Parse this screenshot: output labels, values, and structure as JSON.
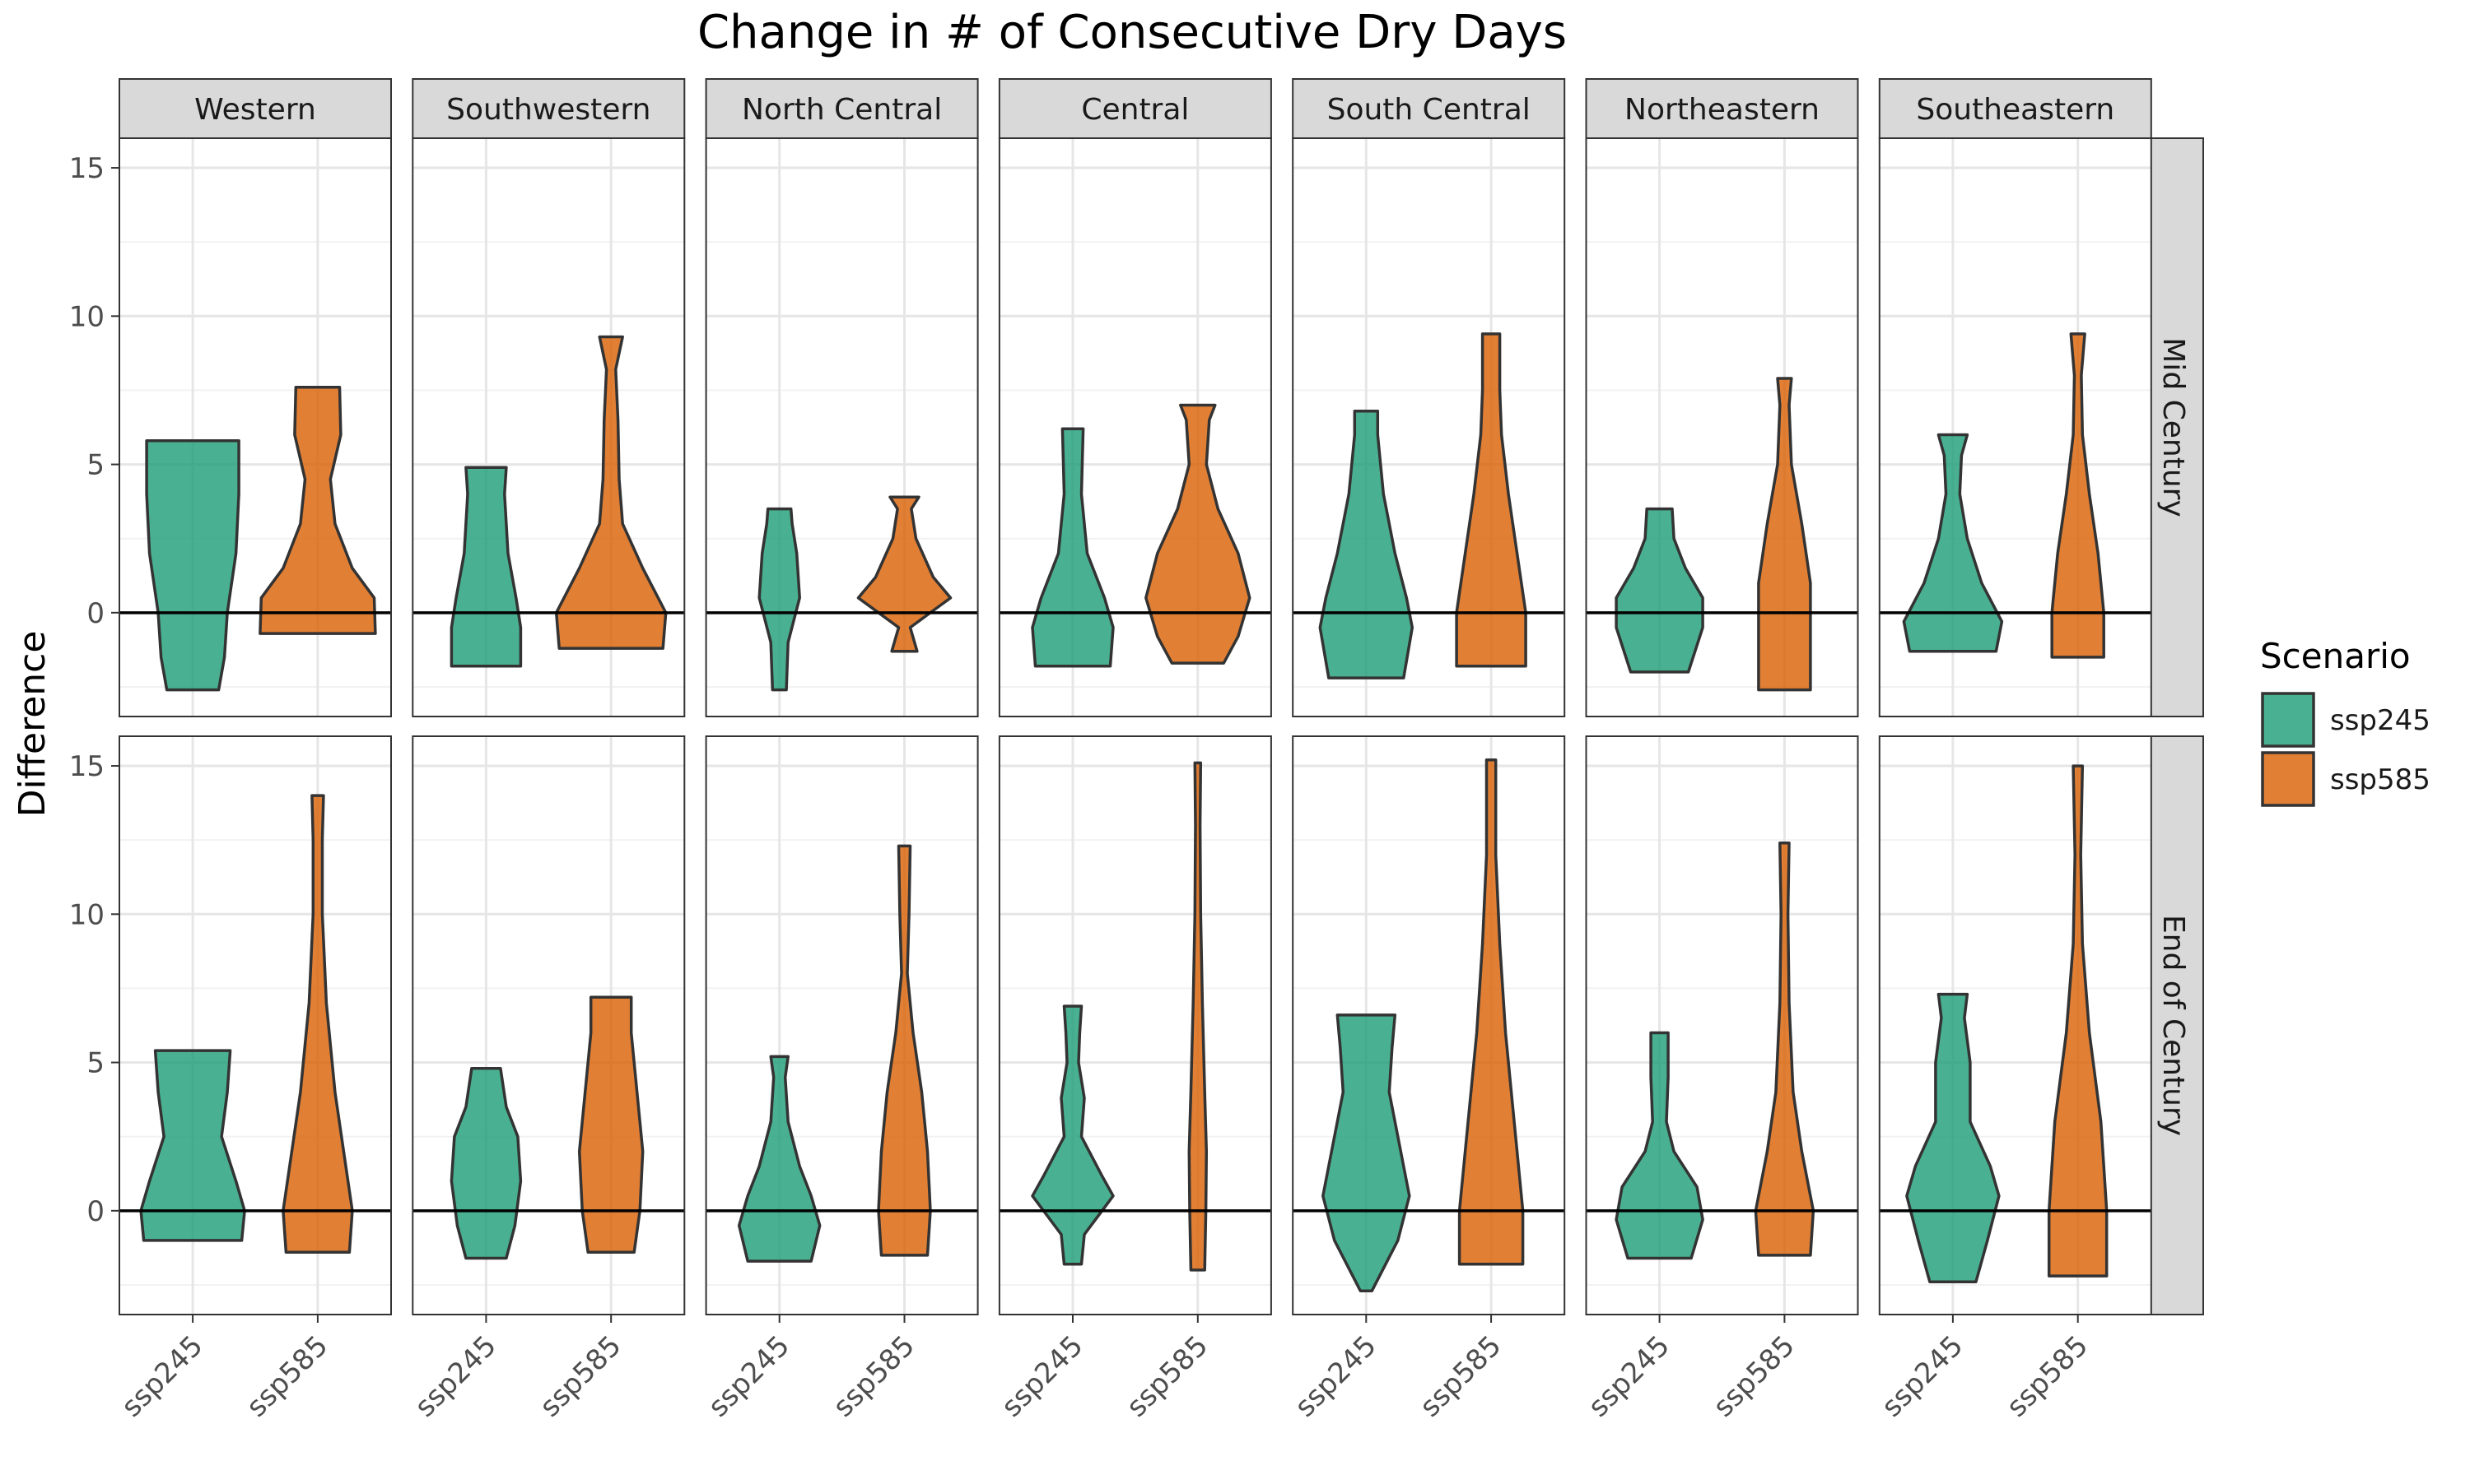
{
  "chart_data": {
    "type": "violin",
    "title": "Change in # of Consecutive Dry Days",
    "xlabel": "",
    "ylabel": "Difference",
    "facet_columns": [
      "Western",
      "Southwestern",
      "North Central",
      "Central",
      "South Central",
      "Northeastern",
      "Southeastern"
    ],
    "facet_rows": [
      "Mid Century",
      "End of Century"
    ],
    "categories": [
      "ssp245",
      "ssp585"
    ],
    "ylim": [
      -3.5,
      16
    ],
    "y_ticks": [
      0,
      5,
      10,
      15
    ],
    "y_tick_labels": [
      "0",
      "5",
      "10",
      "15"
    ],
    "reference_line_y": 0,
    "legend": {
      "title": "Scenario",
      "position": "right",
      "entries": [
        {
          "name": "ssp245",
          "color": "#1b9e77"
        },
        {
          "name": "ssp585",
          "color": "#d95f02"
        }
      ]
    },
    "series": [
      {
        "name": "ssp245",
        "color": "#1b9e77"
      },
      {
        "name": "ssp585",
        "color": "#d95f02"
      }
    ],
    "violins": [
      {
        "row": "Mid Century",
        "col": "Western",
        "scenario": "ssp245",
        "min": -2.6,
        "max": 5.8,
        "shape": [
          [
            -2.6,
            0.45
          ],
          [
            -1.5,
            0.55
          ],
          [
            0,
            0.6
          ],
          [
            2,
            0.75
          ],
          [
            4,
            0.8
          ],
          [
            5.8,
            0.8
          ]
        ]
      },
      {
        "row": "Mid Century",
        "col": "Western",
        "scenario": "ssp585",
        "min": -0.7,
        "max": 7.6,
        "shape": [
          [
            -0.7,
            1.0
          ],
          [
            0.5,
            0.98
          ],
          [
            1.5,
            0.6
          ],
          [
            3,
            0.3
          ],
          [
            4.5,
            0.22
          ],
          [
            6,
            0.4
          ],
          [
            7.6,
            0.38
          ]
        ]
      },
      {
        "row": "Mid Century",
        "col": "Southwestern",
        "scenario": "ssp245",
        "min": -1.8,
        "max": 4.9,
        "shape": [
          [
            -1.8,
            0.6
          ],
          [
            -0.5,
            0.6
          ],
          [
            0.5,
            0.52
          ],
          [
            2,
            0.38
          ],
          [
            4,
            0.32
          ],
          [
            4.9,
            0.35
          ]
        ]
      },
      {
        "row": "Mid Century",
        "col": "Southwestern",
        "scenario": "ssp585",
        "min": -1.2,
        "max": 9.3,
        "shape": [
          [
            -1.2,
            0.9
          ],
          [
            0,
            0.95
          ],
          [
            1.5,
            0.55
          ],
          [
            3,
            0.2
          ],
          [
            4.5,
            0.14
          ],
          [
            6.5,
            0.12
          ],
          [
            8.2,
            0.08
          ],
          [
            9.3,
            0.2
          ]
        ]
      },
      {
        "row": "Mid Century",
        "col": "North Central",
        "scenario": "ssp245",
        "min": -2.6,
        "max": 3.5,
        "shape": [
          [
            -2.6,
            0.12
          ],
          [
            -1,
            0.15
          ],
          [
            0.5,
            0.35
          ],
          [
            2,
            0.3
          ],
          [
            3,
            0.22
          ],
          [
            3.5,
            0.2
          ]
        ]
      },
      {
        "row": "Mid Century",
        "col": "North Central",
        "scenario": "ssp585",
        "min": -1.3,
        "max": 3.9,
        "shape": [
          [
            -1.3,
            0.22
          ],
          [
            -0.5,
            0.1
          ],
          [
            0.5,
            0.8
          ],
          [
            1.2,
            0.5
          ],
          [
            2.5,
            0.2
          ],
          [
            3.5,
            0.12
          ],
          [
            3.9,
            0.25
          ]
        ]
      },
      {
        "row": "Mid Century",
        "col": "Central",
        "scenario": "ssp245",
        "min": -1.8,
        "max": 6.2,
        "shape": [
          [
            -1.8,
            0.65
          ],
          [
            -0.5,
            0.7
          ],
          [
            0.5,
            0.55
          ],
          [
            2,
            0.25
          ],
          [
            4,
            0.15
          ],
          [
            6.2,
            0.18
          ]
        ]
      },
      {
        "row": "Mid Century",
        "col": "Central",
        "scenario": "ssp585",
        "min": -1.7,
        "max": 7.0,
        "shape": [
          [
            -1.7,
            0.45
          ],
          [
            -0.8,
            0.7
          ],
          [
            0.5,
            0.9
          ],
          [
            2,
            0.7
          ],
          [
            3.5,
            0.35
          ],
          [
            5,
            0.15
          ],
          [
            6.5,
            0.2
          ],
          [
            7,
            0.3
          ]
        ]
      },
      {
        "row": "Mid Century",
        "col": "South Central",
        "scenario": "ssp245",
        "min": -2.2,
        "max": 6.8,
        "shape": [
          [
            -2.2,
            0.65
          ],
          [
            -0.5,
            0.8
          ],
          [
            0.5,
            0.7
          ],
          [
            2,
            0.5
          ],
          [
            4,
            0.3
          ],
          [
            6,
            0.2
          ],
          [
            6.8,
            0.2
          ]
        ]
      },
      {
        "row": "Mid Century",
        "col": "South Central",
        "scenario": "ssp585",
        "min": -1.8,
        "max": 9.4,
        "shape": [
          [
            -1.8,
            0.6
          ],
          [
            0,
            0.6
          ],
          [
            2,
            0.45
          ],
          [
            4,
            0.3
          ],
          [
            6,
            0.18
          ],
          [
            7.5,
            0.15
          ],
          [
            9.4,
            0.15
          ]
        ]
      },
      {
        "row": "Mid Century",
        "col": "Northeastern",
        "scenario": "ssp245",
        "min": -2.0,
        "max": 3.5,
        "shape": [
          [
            -2,
            0.5
          ],
          [
            -0.5,
            0.75
          ],
          [
            0.5,
            0.75
          ],
          [
            1.5,
            0.45
          ],
          [
            2.5,
            0.25
          ],
          [
            3.5,
            0.22
          ]
        ]
      },
      {
        "row": "Mid Century",
        "col": "Northeastern",
        "scenario": "ssp585",
        "min": -2.6,
        "max": 7.9,
        "shape": [
          [
            -2.6,
            0.45
          ],
          [
            -0.5,
            0.45
          ],
          [
            1,
            0.45
          ],
          [
            3,
            0.3
          ],
          [
            5,
            0.12
          ],
          [
            7,
            0.08
          ],
          [
            7.9,
            0.12
          ]
        ]
      },
      {
        "row": "Mid Century",
        "col": "Southeastern",
        "scenario": "ssp245",
        "min": -1.3,
        "max": 6.0,
        "shape": [
          [
            -1.3,
            0.75
          ],
          [
            -0.3,
            0.85
          ],
          [
            1,
            0.5
          ],
          [
            2.5,
            0.25
          ],
          [
            4,
            0.12
          ],
          [
            5.3,
            0.15
          ],
          [
            6,
            0.25
          ]
        ]
      },
      {
        "row": "Mid Century",
        "col": "Southeastern",
        "scenario": "ssp585",
        "min": -1.5,
        "max": 9.4,
        "shape": [
          [
            -1.5,
            0.45
          ],
          [
            0,
            0.45
          ],
          [
            2,
            0.35
          ],
          [
            4,
            0.2
          ],
          [
            6,
            0.08
          ],
          [
            8,
            0.06
          ],
          [
            9.4,
            0.12
          ]
        ]
      },
      {
        "row": "End of Century",
        "col": "Western",
        "scenario": "ssp245",
        "min": -1.0,
        "max": 5.4,
        "shape": [
          [
            -1,
            0.85
          ],
          [
            0,
            0.9
          ],
          [
            1,
            0.75
          ],
          [
            2.5,
            0.5
          ],
          [
            4,
            0.6
          ],
          [
            5.4,
            0.65
          ]
        ]
      },
      {
        "row": "End of Century",
        "col": "Western",
        "scenario": "ssp585",
        "min": -1.4,
        "max": 14.0,
        "shape": [
          [
            -1.4,
            0.55
          ],
          [
            0,
            0.6
          ],
          [
            2,
            0.45
          ],
          [
            4,
            0.3
          ],
          [
            7,
            0.15
          ],
          [
            10,
            0.08
          ],
          [
            12.5,
            0.08
          ],
          [
            14,
            0.1
          ]
        ]
      },
      {
        "row": "End of Century",
        "col": "Southwestern",
        "scenario": "ssp245",
        "min": -1.6,
        "max": 4.8,
        "shape": [
          [
            -1.6,
            0.35
          ],
          [
            -0.5,
            0.5
          ],
          [
            1,
            0.6
          ],
          [
            2.5,
            0.55
          ],
          [
            3.5,
            0.35
          ],
          [
            4.8,
            0.25
          ]
        ]
      },
      {
        "row": "End of Century",
        "col": "Southwestern",
        "scenario": "ssp585",
        "min": -1.4,
        "max": 7.2,
        "shape": [
          [
            -1.4,
            0.4
          ],
          [
            0,
            0.5
          ],
          [
            2,
            0.55
          ],
          [
            4,
            0.45
          ],
          [
            6,
            0.35
          ],
          [
            7.2,
            0.35
          ]
        ]
      },
      {
        "row": "End of Century",
        "col": "North Central",
        "scenario": "ssp245",
        "min": -1.7,
        "max": 5.2,
        "shape": [
          [
            -1.7,
            0.55
          ],
          [
            -0.5,
            0.7
          ],
          [
            0.5,
            0.55
          ],
          [
            1.5,
            0.35
          ],
          [
            3,
            0.15
          ],
          [
            4.5,
            0.1
          ],
          [
            5.2,
            0.15
          ]
        ]
      },
      {
        "row": "End of Century",
        "col": "North Central",
        "scenario": "ssp585",
        "min": -1.5,
        "max": 12.3,
        "shape": [
          [
            -1.5,
            0.4
          ],
          [
            0,
            0.45
          ],
          [
            2,
            0.4
          ],
          [
            4,
            0.3
          ],
          [
            6,
            0.15
          ],
          [
            8,
            0.05
          ],
          [
            10,
            0.08
          ],
          [
            12.3,
            0.1
          ]
        ]
      },
      {
        "row": "End of Century",
        "col": "Central",
        "scenario": "ssp245",
        "min": -1.8,
        "max": 6.9,
        "shape": [
          [
            -1.8,
            0.15
          ],
          [
            -0.8,
            0.2
          ],
          [
            0.5,
            0.7
          ],
          [
            1.2,
            0.5
          ],
          [
            2.5,
            0.15
          ],
          [
            3.8,
            0.2
          ],
          [
            5,
            0.1
          ],
          [
            6,
            0.12
          ],
          [
            6.9,
            0.15
          ]
        ]
      },
      {
        "row": "End of Century",
        "col": "Central",
        "scenario": "ssp585",
        "min": -2.0,
        "max": 15.1,
        "shape": [
          [
            -2,
            0.12
          ],
          [
            0,
            0.14
          ],
          [
            2,
            0.15
          ],
          [
            4,
            0.12
          ],
          [
            7,
            0.08
          ],
          [
            10,
            0.05
          ],
          [
            13,
            0.04
          ],
          [
            15.1,
            0.05
          ]
        ]
      },
      {
        "row": "End of Century",
        "col": "South Central",
        "scenario": "ssp245",
        "min": -2.7,
        "max": 6.6,
        "shape": [
          [
            -2.7,
            0.1
          ],
          [
            -1,
            0.55
          ],
          [
            0.5,
            0.75
          ],
          [
            2,
            0.6
          ],
          [
            4,
            0.4
          ],
          [
            5.5,
            0.45
          ],
          [
            6.6,
            0.5
          ]
        ]
      },
      {
        "row": "End of Century",
        "col": "South Central",
        "scenario": "ssp585",
        "min": -1.8,
        "max": 15.2,
        "shape": [
          [
            -1.8,
            0.55
          ],
          [
            0,
            0.55
          ],
          [
            3,
            0.4
          ],
          [
            6,
            0.25
          ],
          [
            9,
            0.15
          ],
          [
            12,
            0.08
          ],
          [
            15.2,
            0.08
          ]
        ]
      },
      {
        "row": "End of Century",
        "col": "Northeastern",
        "scenario": "ssp245",
        "min": -1.6,
        "max": 6.0,
        "shape": [
          [
            -1.6,
            0.55
          ],
          [
            -0.3,
            0.75
          ],
          [
            0.8,
            0.65
          ],
          [
            2,
            0.25
          ],
          [
            3,
            0.12
          ],
          [
            4.5,
            0.15
          ],
          [
            6,
            0.15
          ]
        ]
      },
      {
        "row": "End of Century",
        "col": "Northeastern",
        "scenario": "ssp585",
        "min": -1.5,
        "max": 12.4,
        "shape": [
          [
            -1.5,
            0.45
          ],
          [
            0,
            0.5
          ],
          [
            2,
            0.3
          ],
          [
            4,
            0.15
          ],
          [
            7,
            0.08
          ],
          [
            10,
            0.06
          ],
          [
            12.4,
            0.08
          ]
        ]
      },
      {
        "row": "End of Century",
        "col": "Southeastern",
        "scenario": "ssp245",
        "min": -2.4,
        "max": 7.3,
        "shape": [
          [
            -2.4,
            0.4
          ],
          [
            -1,
            0.6
          ],
          [
            0.5,
            0.8
          ],
          [
            1.5,
            0.65
          ],
          [
            3,
            0.3
          ],
          [
            5,
            0.3
          ],
          [
            6.5,
            0.2
          ],
          [
            7.3,
            0.25
          ]
        ]
      },
      {
        "row": "End of Century",
        "col": "Southeastern",
        "scenario": "ssp585",
        "min": -2.2,
        "max": 15.0,
        "shape": [
          [
            -2.2,
            0.5
          ],
          [
            0,
            0.5
          ],
          [
            3,
            0.4
          ],
          [
            6,
            0.2
          ],
          [
            9,
            0.08
          ],
          [
            12,
            0.05
          ],
          [
            15,
            0.08
          ]
        ]
      }
    ]
  }
}
